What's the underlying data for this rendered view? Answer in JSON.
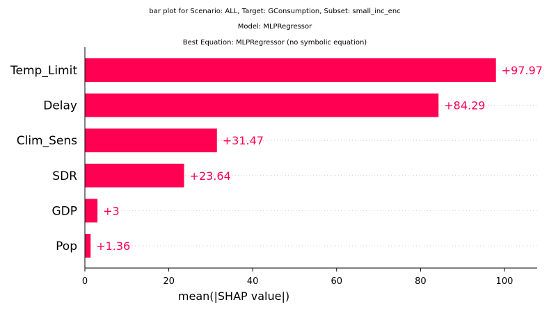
{
  "chart_data": {
    "type": "bar",
    "orientation": "horizontal",
    "title_lines": [
      "bar plot for Scenario: ALL, Target: GConsumption, Subset: small_inc_enc",
      "Model: MLPRegressor",
      "Best Equation: MLPRegressor (no symbolic equation)"
    ],
    "categories": [
      "Temp_Limit",
      "Delay",
      "Clim_Sens",
      "SDR",
      "GDP",
      "Pop"
    ],
    "values": [
      97.97,
      84.29,
      31.47,
      23.64,
      3,
      1.36
    ],
    "value_labels": [
      "+97.97",
      "+84.29",
      "+31.47",
      "+23.64",
      "+3",
      "+1.36"
    ],
    "xlabel": "mean(|SHAP value|)",
    "ylabel": "",
    "xlim": [
      0,
      107.8
    ],
    "xticks": [
      0,
      20,
      40,
      60,
      80,
      100
    ],
    "xtick_labels": [
      "0",
      "20",
      "40",
      "60",
      "80",
      "100"
    ],
    "bar_color": "#ff0052",
    "value_label_color": "#ff0052",
    "gridline_color": "#cccccc",
    "grid": "dotted horizontal guide per bar",
    "legend": "none"
  }
}
